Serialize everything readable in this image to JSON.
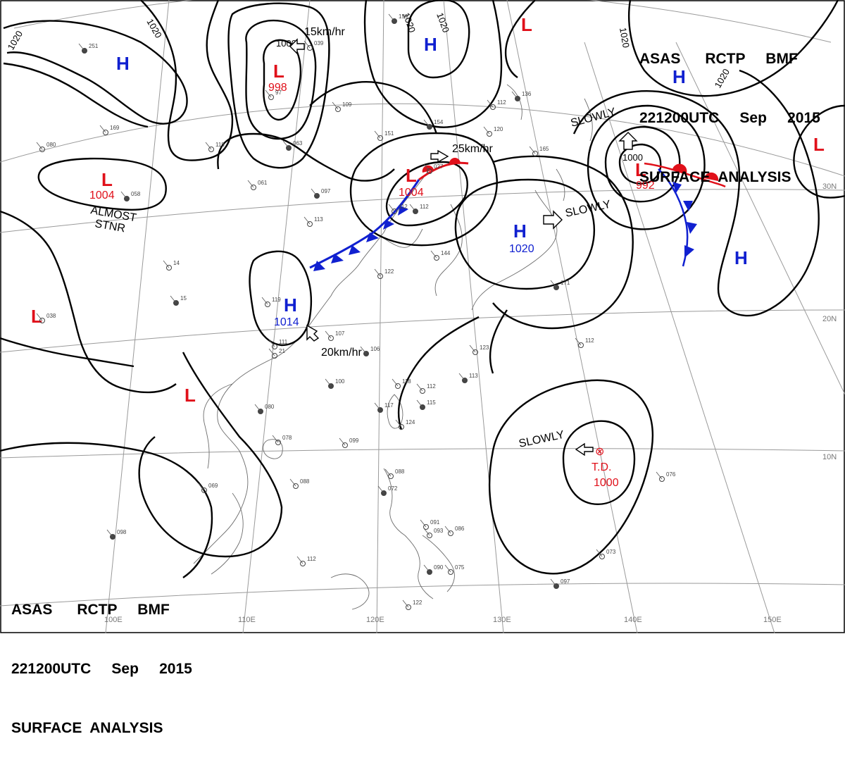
{
  "header": {
    "line1": "ASAS      RCTP     BMF",
    "line2": "221200UTC     Sep     2015",
    "line3": "SURFACE  ANALYSIS"
  },
  "footer": {
    "line1": "ASAS      RCTP     BMF",
    "line2": "221200UTC     Sep     2015",
    "line3": "SURFACE  ANALYSIS"
  },
  "grid_labels": {
    "lon_100": "100E",
    "lon_110": "110E",
    "lon_120": "120E",
    "lon_130": "130E",
    "lon_140": "140E",
    "lon_150": "150E",
    "lat_10": "10N",
    "lat_20": "20N",
    "lat_30": "30N"
  },
  "pressure_centers": {
    "h_north_west": "H",
    "h_north_center": "H",
    "h_north_east": "H",
    "h_east": "H",
    "l_north": "L",
    "l_north_value": "998",
    "l_north_east": "L",
    "l_west": "L",
    "l_west_value": "1004",
    "l_west_note_1": "ALMOST",
    "l_west_note_2": "STNR",
    "l_far_west": "L",
    "l_southwest": "L",
    "l_far_east": "L",
    "l_front": "L",
    "l_front_value": "1004",
    "h_inland": "H",
    "h_inland_value": "1014",
    "h_japan": "H",
    "h_japan_value": "1020",
    "l_typhoon": "L",
    "l_typhoon_value": "992",
    "td_symbol": "⊗",
    "td_label": "T.D.",
    "td_value": "1000"
  },
  "movements": {
    "north_low": "15km/hr",
    "front_low": "25km/hr",
    "inland_high": "20km/hr",
    "typhoon_low": "SLOWLY",
    "japan_high": "SLOWLY",
    "td": "SLOWLY"
  },
  "isobar_labels": {
    "a": "1020",
    "b": "1020",
    "c": "1020",
    "d": "1020",
    "e": "1020",
    "f": "1000",
    "g": "1000"
  },
  "station_reports": [
    "251",
    "169",
    "080",
    "058",
    "118",
    "061",
    "097",
    "113",
    "112",
    "063",
    "039",
    "97",
    "159",
    "109",
    "151",
    "154",
    "120",
    "112",
    "136",
    "165",
    "027",
    "112",
    "119",
    "107",
    "106",
    "111",
    "122",
    "117",
    "124",
    "099",
    "080",
    "078",
    "069",
    "098",
    "088",
    "112",
    "115",
    "144",
    "123",
    "171",
    "076",
    "075",
    "090",
    "093",
    "086",
    "097",
    "122",
    "088",
    "072",
    "091",
    "038",
    "100",
    "118",
    "112",
    "113",
    "112",
    "073",
    "15",
    "21",
    "14"
  ],
  "colors": {
    "high": "#1020d0",
    "low": "#e0101a",
    "cold_front": "#1020d0",
    "warm_front": "#e0101a",
    "isobar": "#000000",
    "grid": "#9a9a9a",
    "coast": "#6d6d6d"
  }
}
